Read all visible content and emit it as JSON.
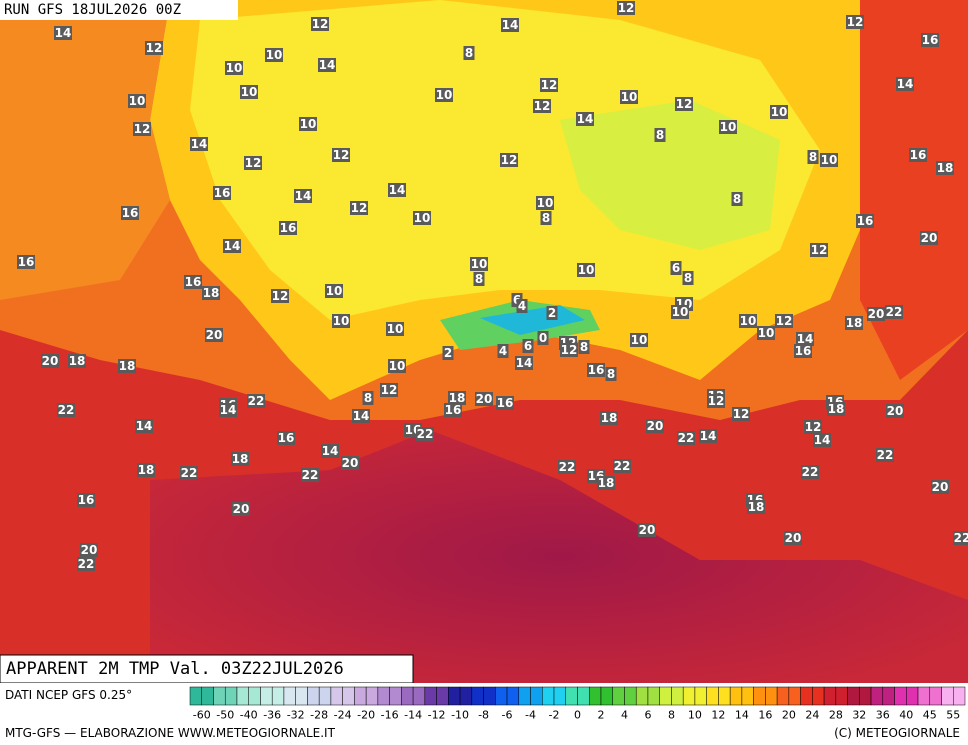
{
  "header": {
    "run": "RUN GFS 18JUL2026 00Z"
  },
  "title": "APPARENT 2M TMP Val. 03Z22JUL2026",
  "map": {
    "labels": [
      14,
      12,
      14,
      12,
      12,
      16,
      12,
      10,
      10,
      14,
      8,
      12,
      12,
      10,
      12,
      14,
      10,
      10,
      10,
      14,
      10,
      12,
      10,
      10,
      8,
      14,
      12,
      12,
      16,
      8,
      10,
      18,
      12,
      16,
      14,
      14,
      16,
      12,
      10,
      10,
      8,
      8,
      16,
      16,
      14,
      12,
      20,
      16,
      10,
      8,
      10,
      6,
      8,
      16,
      18,
      12,
      10,
      6,
      4,
      20,
      10,
      10,
      2,
      10,
      10,
      10,
      10,
      12,
      18,
      20,
      22,
      0,
      14,
      16,
      10,
      20,
      18,
      18,
      10,
      2,
      4,
      6,
      12,
      12,
      8,
      14,
      16,
      8,
      12,
      8,
      18,
      16,
      20,
      16,
      16,
      14,
      22,
      16,
      18,
      20,
      12,
      12,
      22,
      14,
      18,
      20,
      12,
      14,
      16,
      22,
      22,
      14,
      12,
      14,
      16,
      14,
      20,
      22,
      18,
      18,
      22,
      22,
      22,
      22,
      16,
      18,
      22,
      20,
      16,
      20,
      16,
      18,
      20,
      20,
      22,
      20,
      22
    ]
  },
  "legend": {
    "source": "DATI NCEP GFS 0.25°",
    "ticks": [
      -60,
      -50,
      -40,
      -36,
      -32,
      -28,
      -24,
      -20,
      -16,
      -14,
      -12,
      -10,
      -8,
      -6,
      -4,
      -2,
      0,
      2,
      4,
      6,
      8,
      10,
      12,
      14,
      16,
      20,
      24,
      28,
      32,
      36,
      40,
      45,
      55
    ],
    "credit_left": "MTG-GFS — ELABORAZIONE WWW.METEOGIORNALE.IT",
    "credit_right": "(C) METEOGIORNALE"
  }
}
